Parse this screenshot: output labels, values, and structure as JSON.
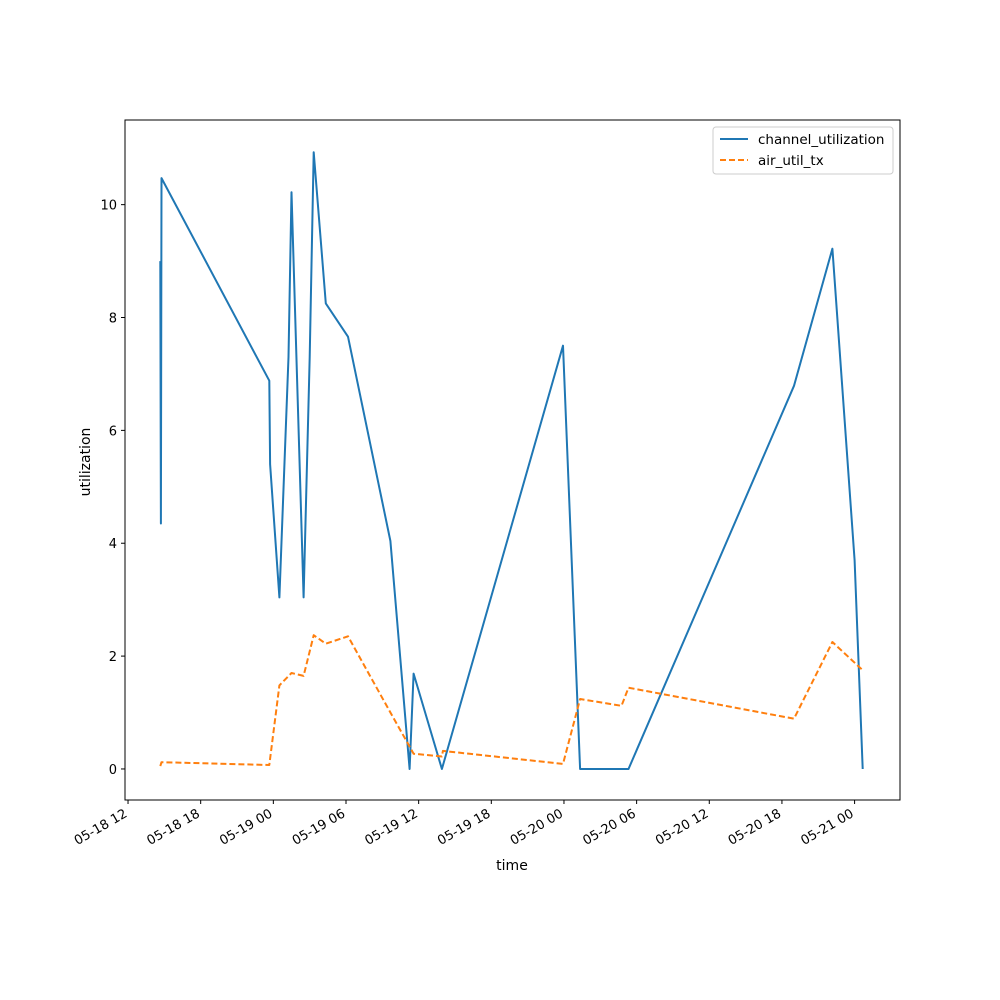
{
  "chart_data": {
    "type": "line",
    "title": "",
    "xlabel": "time",
    "ylabel": "utilization",
    "x_ticks": [
      "05-18 12",
      "05-18 18",
      "05-19 00",
      "05-19 06",
      "05-19 12",
      "05-19 18",
      "05-20 00",
      "05-20 06",
      "05-20 12",
      "05-20 18",
      "05-21 00"
    ],
    "y_ticks": [
      "0",
      "2",
      "4",
      "6",
      "8",
      "10"
    ],
    "xlim": [
      "2024-05-18 11:45",
      "2024-05-21 03:45"
    ],
    "ylim": [
      -0.55,
      11.5
    ],
    "grid": false,
    "legend_position": "top-right",
    "series": [
      {
        "name": "channel_utilization",
        "color": "#1f77b4",
        "style": "solid",
        "points": [
          [
            "2024-05-18 14:40",
            9.0
          ],
          [
            "2024-05-18 14:43",
            4.35
          ],
          [
            "2024-05-18 14:46",
            10.47
          ],
          [
            "2024-05-18 23:40",
            6.88
          ],
          [
            "2024-05-18 23:44",
            5.4
          ],
          [
            "2024-05-19 00:30",
            3.04
          ],
          [
            "2024-05-19 01:15",
            7.3
          ],
          [
            "2024-05-19 01:30",
            10.22
          ],
          [
            "2024-05-19 02:30",
            3.04
          ],
          [
            "2024-05-19 03:00",
            7.3
          ],
          [
            "2024-05-19 03:20",
            10.93
          ],
          [
            "2024-05-19 04:20",
            8.25
          ],
          [
            "2024-05-19 06:10",
            7.66
          ],
          [
            "2024-05-19 09:40",
            4.04
          ],
          [
            "2024-05-19 11:15",
            0.0
          ],
          [
            "2024-05-19 11:35",
            1.69
          ],
          [
            "2024-05-19 13:55",
            0.0
          ],
          [
            "2024-05-19 23:55",
            7.5
          ],
          [
            "2024-05-20 01:20",
            0.0
          ],
          [
            "2024-05-20 05:20",
            0.0
          ],
          [
            "2024-05-20 19:00",
            6.79
          ],
          [
            "2024-05-20 22:10",
            9.22
          ],
          [
            "2024-05-21 00:00",
            3.7
          ],
          [
            "2024-05-21 00:40",
            0.0
          ]
        ]
      },
      {
        "name": "air_util_tx",
        "color": "#ff7f0e",
        "style": "dashed",
        "points": [
          [
            "2024-05-18 14:40",
            0.05
          ],
          [
            "2024-05-18 14:46",
            0.12
          ],
          [
            "2024-05-18 23:40",
            0.07
          ],
          [
            "2024-05-19 00:30",
            1.48
          ],
          [
            "2024-05-19 01:30",
            1.7
          ],
          [
            "2024-05-19 02:30",
            1.65
          ],
          [
            "2024-05-19 03:20",
            2.37
          ],
          [
            "2024-05-19 04:20",
            2.22
          ],
          [
            "2024-05-19 06:10",
            2.35
          ],
          [
            "2024-05-19 09:40",
            1.0
          ],
          [
            "2024-05-19 11:35",
            0.27
          ],
          [
            "2024-05-19 13:55",
            0.22
          ],
          [
            "2024-05-19 14:00",
            0.32
          ],
          [
            "2024-05-19 23:55",
            0.09
          ],
          [
            "2024-05-20 01:20",
            1.24
          ],
          [
            "2024-05-20 04:45",
            1.12
          ],
          [
            "2024-05-20 05:20",
            1.44
          ],
          [
            "2024-05-20 19:00",
            0.89
          ],
          [
            "2024-05-20 22:10",
            2.25
          ],
          [
            "2024-05-21 00:40",
            1.75
          ]
        ]
      }
    ]
  }
}
